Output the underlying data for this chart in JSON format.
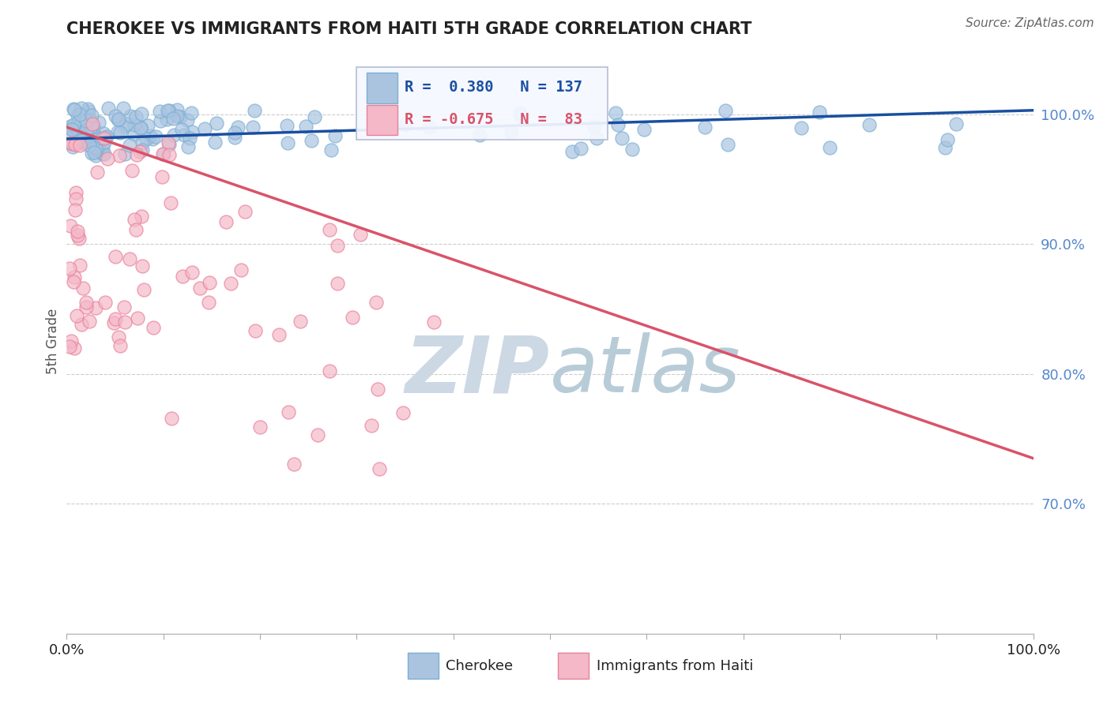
{
  "title": "CHEROKEE VS IMMIGRANTS FROM HAITI 5TH GRADE CORRELATION CHART",
  "source": "Source: ZipAtlas.com",
  "ylabel": "5th Grade",
  "right_yticks": [
    "70.0%",
    "80.0%",
    "90.0%",
    "100.0%"
  ],
  "right_ytick_vals": [
    0.7,
    0.8,
    0.9,
    1.0
  ],
  "cherokee_R": 0.38,
  "cherokee_N": 137,
  "haiti_R": -0.675,
  "haiti_N": 83,
  "blue_scatter_color": "#aac4e0",
  "blue_edge_color": "#7bafd4",
  "pink_scatter_color": "#f4b8c8",
  "pink_edge_color": "#e8809a",
  "blue_line_color": "#1a4fa0",
  "pink_line_color": "#d9536a",
  "watermark_color": "#d0dce8",
  "background_color": "#ffffff",
  "grid_color": "#cccccc",
  "title_color": "#222222",
  "right_axis_color": "#5588cc",
  "xlim": [
    0.0,
    1.0
  ],
  "ylim": [
    0.6,
    1.05
  ],
  "blue_trend_x": [
    0.0,
    1.0
  ],
  "blue_trend_y": [
    0.981,
    1.003
  ],
  "pink_trend_x": [
    0.0,
    1.0
  ],
  "pink_trend_y": [
    0.99,
    0.735
  ],
  "legend_blue_text_color": "#1a4fa0",
  "legend_pink_text_color": "#d9536a",
  "legend_border_color": "#b0b8d0",
  "legend_bg_color": "#f5f8ff"
}
